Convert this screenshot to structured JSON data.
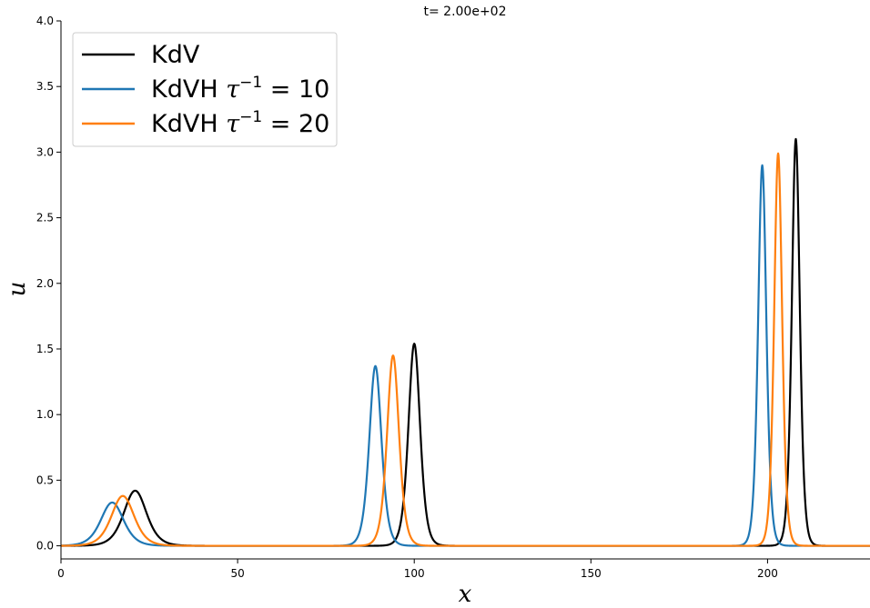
{
  "chart_data": {
    "type": "line",
    "title": "t= 2.00e+02",
    "xlabel": "x",
    "ylabel": "u",
    "xlim": [
      0,
      229
    ],
    "ylim": [
      -0.1,
      4.0
    ],
    "xticks": [
      0,
      50,
      100,
      150,
      200
    ],
    "yticks": [
      0.0,
      0.5,
      1.0,
      1.5,
      2.0,
      2.5,
      3.0,
      3.5,
      4.0
    ],
    "xtick_labels": [
      "0",
      "50",
      "100",
      "150",
      "200"
    ],
    "ytick_labels": [
      "0.0",
      "0.5",
      "1.0",
      "1.5",
      "2.0",
      "2.5",
      "3.0",
      "3.5",
      "4.0"
    ],
    "grid": false,
    "legend_position": "top-left",
    "series": [
      {
        "name": "KdV",
        "legend_base": "KdVH ",
        "color": "#000000",
        "peaks": [
          {
            "center": 21.0,
            "amplitude": 0.42,
            "width": 4.3
          },
          {
            "center": 100.0,
            "amplitude": 1.54,
            "width": 2.2
          },
          {
            "center": 208.0,
            "amplitude": 3.1,
            "width": 1.5
          }
        ]
      },
      {
        "name": "KdVH τ⁻¹ = 10",
        "legend_base": "KdVH ",
        "legend_exp": "−1",
        "legend_rest": " = 10",
        "color": "#1f77b4",
        "peaks": [
          {
            "center": 14.5,
            "amplitude": 0.33,
            "width": 4.3
          },
          {
            "center": 89.0,
            "amplitude": 1.37,
            "width": 2.3
          },
          {
            "center": 198.5,
            "amplitude": 2.9,
            "width": 1.55
          }
        ]
      },
      {
        "name": "KdVH τ⁻¹ = 20",
        "legend_base": "KdVH ",
        "legend_exp": "−1",
        "legend_rest": " = 20",
        "color": "#ff7f0e",
        "peaks": [
          {
            "center": 17.5,
            "amplitude": 0.38,
            "width": 4.3
          },
          {
            "center": 94.0,
            "amplitude": 1.45,
            "width": 2.25
          },
          {
            "center": 203.0,
            "amplitude": 2.99,
            "width": 1.5
          }
        ]
      }
    ]
  }
}
